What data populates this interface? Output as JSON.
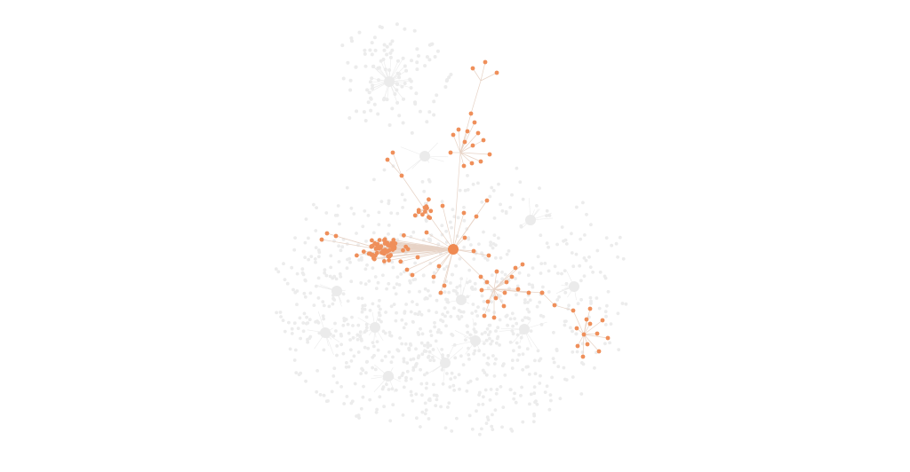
{
  "graph": {
    "highlighted_node": "focus",
    "colors": {
      "background": "#ffffff",
      "node_faint": "#ececec",
      "node_highlight": "#ef8f5a",
      "edge_faint": "#ececec",
      "edge_highlight": "#e7d3c6"
    },
    "hubs": [
      {
        "id": "focus",
        "highlighted": true
      },
      {
        "id": "c1",
        "highlighted": false
      },
      {
        "id": "c2",
        "highlighted": false
      },
      {
        "id": "c3",
        "highlighted": false
      },
      {
        "id": "c4",
        "highlighted": false
      },
      {
        "id": "c5",
        "highlighted": false
      },
      {
        "id": "c6",
        "highlighted": false
      },
      {
        "id": "c7",
        "highlighted": false
      },
      {
        "id": "c8",
        "highlighted": false
      },
      {
        "id": "c9",
        "highlighted": false
      },
      {
        "id": "c10",
        "highlighted": false
      },
      {
        "id": "c11",
        "highlighted": false
      },
      {
        "id": "c12",
        "highlighted": false
      }
    ]
  }
}
